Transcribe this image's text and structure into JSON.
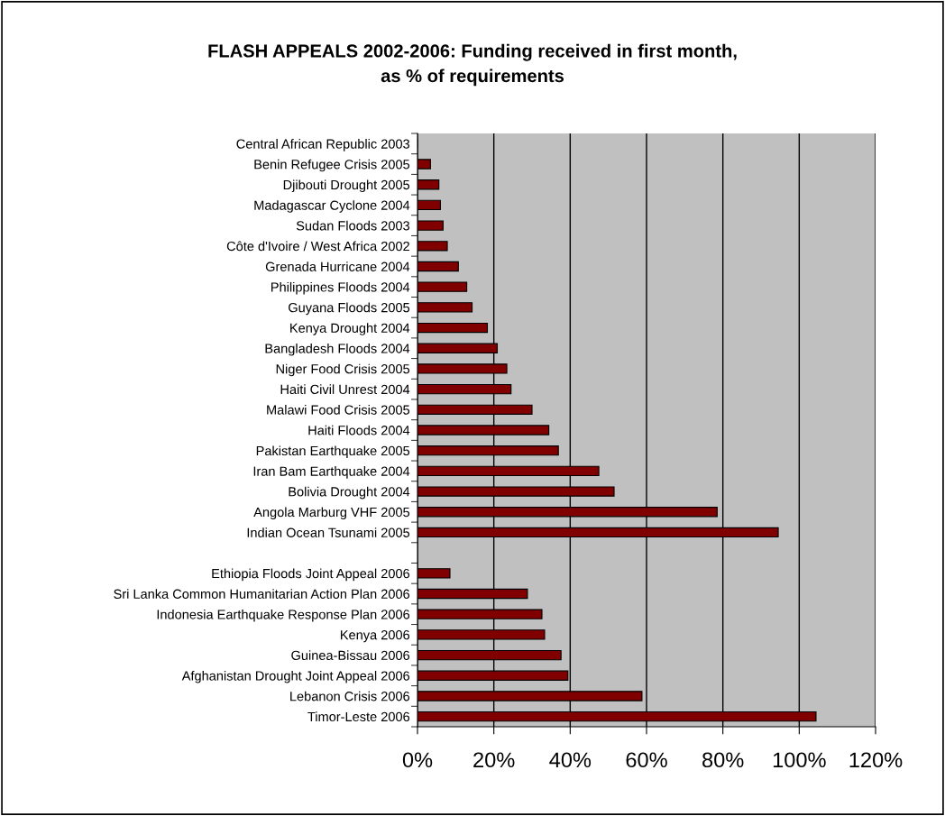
{
  "chart_data": {
    "type": "bar",
    "orientation": "horizontal",
    "title": "FLASH APPEALS 2002-2006: Funding received in first month,\nas % of requirements",
    "categories": [
      "Central African Republic 2003",
      "Benin Refugee Crisis 2005",
      "Djibouti Drought 2005",
      "Madagascar Cyclone 2004",
      "Sudan Floods 2003",
      "Côte d'Ivoire / West Africa 2002",
      "Grenada Hurricane 2004",
      "Philippines Floods 2004",
      "Guyana Floods 2005",
      "Kenya Drought 2004",
      "Bangladesh Floods 2004",
      "Niger Food Crisis 2005",
      "Haiti Civil Unrest 2004",
      "Malawi Food Crisis 2005",
      "Haiti Floods 2004",
      "Pakistan Earthquake 2005",
      "Iran Bam Earthquake 2004",
      "Bolivia Drought 2004",
      "Angola Marburg VHF 2005",
      "Indian Ocean Tsunami 2005",
      null,
      "Ethiopia Floods Joint Appeal 2006",
      "Sri Lanka Common Humanitarian Action Plan 2006",
      "Indonesia Earthquake Response Plan 2006",
      "Kenya 2006",
      "Guinea-Bissau 2006",
      "Afghanistan Drought Joint Appeal 2006",
      "Lebanon Crisis 2006",
      "Timor-Leste 2006"
    ],
    "values": [
      0,
      3.4,
      5.6,
      6.0,
      6.7,
      7.8,
      10.7,
      12.9,
      14.3,
      18.3,
      20.9,
      23.4,
      24.5,
      30.0,
      34.4,
      36.9,
      47.5,
      51.5,
      78.5,
      94.5,
      null,
      8.5,
      28.8,
      32.6,
      33.3,
      37.6,
      39.4,
      58.8,
      104.4
    ],
    "color": "#800000",
    "xlim": [
      0,
      120
    ],
    "xticks": [
      {
        "value": 0,
        "label": "0%"
      },
      {
        "value": 20,
        "label": "20%"
      },
      {
        "value": 40,
        "label": "40%"
      },
      {
        "value": 60,
        "label": "60%"
      },
      {
        "value": 80,
        "label": "80%"
      },
      {
        "value": 100,
        "label": "100%"
      },
      {
        "value": 120,
        "label": "120%"
      }
    ],
    "grid": "x"
  }
}
